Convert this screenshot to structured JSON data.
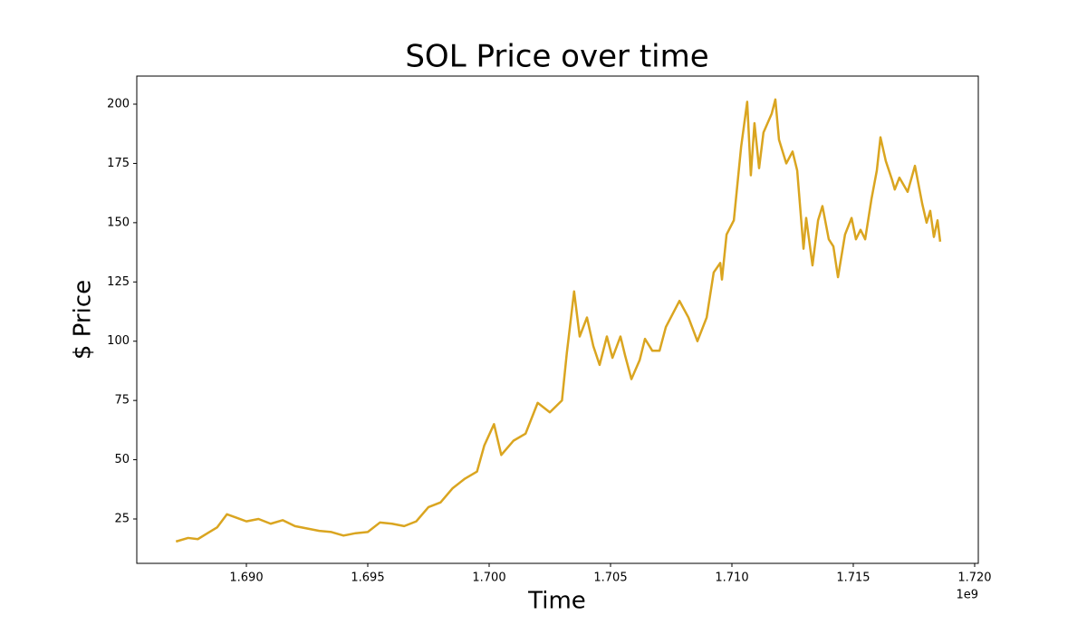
{
  "chart_data": {
    "type": "line",
    "title": "SOL Price over time",
    "xlabel": "Time",
    "ylabel": "$ Price",
    "x_offset_label": "1e9",
    "x": [
      1.6871,
      1.6876,
      1.688,
      1.6884,
      1.6888,
      1.6892,
      1.6896,
      1.69,
      1.6905,
      1.691,
      1.6915,
      1.692,
      1.6925,
      1.693,
      1.6935,
      1.694,
      1.6945,
      1.695,
      1.6955,
      1.696,
      1.6965,
      1.697,
      1.6975,
      1.698,
      1.6985,
      1.699,
      1.6995,
      1.6998,
      1.7002,
      1.7005,
      1.701,
      1.7015,
      1.702,
      1.7025,
      1.703,
      1.7032,
      1.7035,
      1.70373,
      1.70403,
      1.70429,
      1.70455,
      1.70485,
      1.70508,
      1.70541,
      1.7056,
      1.70586,
      1.7062,
      1.70642,
      1.70672,
      1.70702,
      1.70728,
      1.70784,
      1.70821,
      1.70858,
      1.70896,
      1.70925,
      1.70952,
      1.70959,
      1.70978,
      1.71008,
      1.71038,
      1.71063,
      1.71078,
      1.71093,
      1.71112,
      1.7113,
      1.71164,
      1.71179,
      1.71194,
      1.71224,
      1.7125,
      1.71269,
      1.71295,
      1.71306,
      1.71332,
      1.71355,
      1.71373,
      1.71399,
      1.71418,
      1.71437,
      1.71466,
      1.71493,
      1.71511,
      1.7153,
      1.71549,
      1.71575,
      1.71597,
      1.71612,
      1.71634,
      1.7166,
      1.71671,
      1.7169,
      1.71724,
      1.71754,
      1.71784,
      1.71802,
      1.71817,
      1.71832,
      1.71847,
      1.71858
    ],
    "series": [
      {
        "name": "SOL",
        "color": "#daa520",
        "values": [
          15.5,
          17,
          16.5,
          19,
          21.5,
          27,
          25.5,
          24,
          25,
          23,
          24.5,
          22,
          21,
          20,
          19.5,
          18,
          19,
          19.5,
          23.5,
          23,
          22,
          24,
          30,
          32,
          38,
          42,
          45,
          56,
          65,
          52,
          58,
          61,
          74,
          70,
          75,
          95,
          121,
          102,
          110,
          98,
          90,
          102,
          93,
          102,
          94,
          84,
          92,
          101,
          96,
          96,
          106,
          117,
          110,
          100,
          110,
          129,
          133,
          126,
          145,
          151,
          182,
          201,
          170,
          192,
          173,
          188,
          196,
          202,
          185,
          175,
          180,
          172,
          139,
          152,
          132,
          151,
          157,
          143,
          140,
          127,
          145,
          152,
          143,
          147,
          143,
          160,
          172,
          186,
          176,
          168,
          164,
          169,
          163,
          174,
          158,
          150,
          155,
          144,
          151,
          142
        ]
      }
    ],
    "xlim": [
      1.685485,
      1.72015
    ],
    "ylim": [
      6.28,
      211.85
    ],
    "xticks": [
      {
        "value": 1.69,
        "label": "1.690"
      },
      {
        "value": 1.695,
        "label": "1.695"
      },
      {
        "value": 1.7,
        "label": "1.700"
      },
      {
        "value": 1.705,
        "label": "1.705"
      },
      {
        "value": 1.71,
        "label": "1.710"
      },
      {
        "value": 1.715,
        "label": "1.715"
      },
      {
        "value": 1.72,
        "label": "1.720"
      }
    ],
    "yticks": [
      25,
      50,
      75,
      100,
      125,
      150,
      175,
      200
    ],
    "grid": false
  }
}
